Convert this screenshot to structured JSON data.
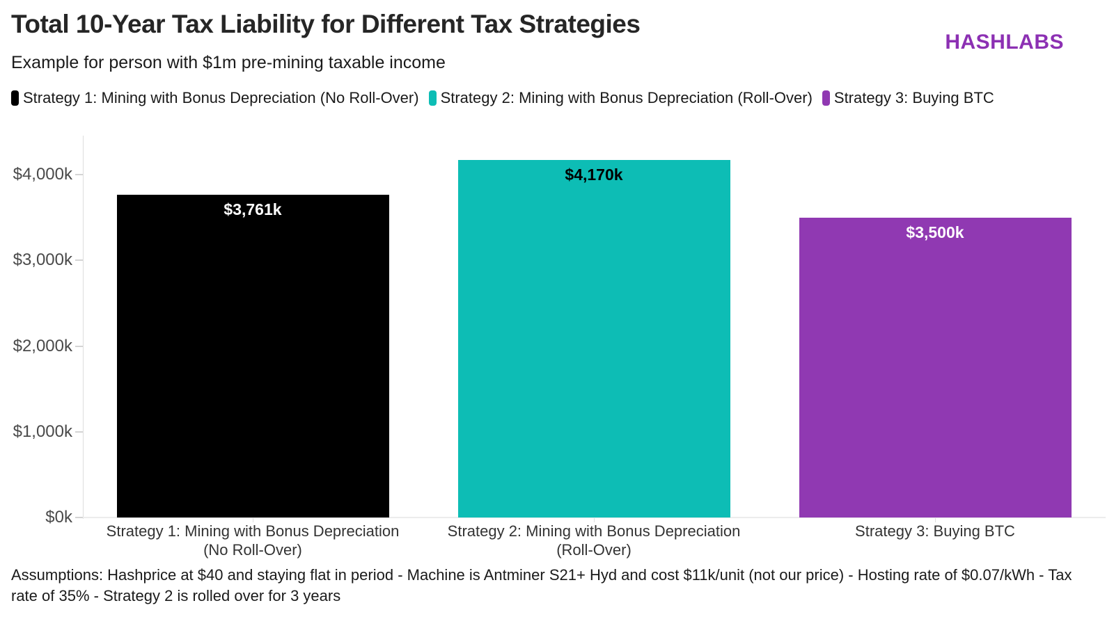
{
  "header": {
    "title": "Total 10-Year Tax Liability for Different Tax Strategies",
    "subtitle": "Example for person with $1m pre-mining taxable income",
    "logo_text": "HASHLABS",
    "logo_color": "#8c30b3"
  },
  "legend": {
    "items": [
      {
        "label": "Strategy 1: Mining with Bonus Depreciation (No Roll-Over)",
        "color": "#000000"
      },
      {
        "label": "Strategy 2: Mining with Bonus Depreciation (Roll-Over)",
        "color": "#0dbdb5"
      },
      {
        "label": "Strategy 3: Buying BTC",
        "color": "#9039b2"
      }
    ]
  },
  "chart_data": {
    "type": "bar",
    "title": "Total 10-Year Tax Liability for Different Tax Strategies",
    "subtitle": "Example for person with $1m pre-mining taxable income",
    "categories": [
      "Strategy 1: Mining with Bonus Depreciation\n(No Roll-Over)",
      "Strategy 2: Mining with Bonus Depreciation\n(Roll-Over)",
      "Strategy 3: Buying BTC"
    ],
    "series": [
      {
        "name": "Total 10-Year Tax Liability ($k)",
        "values": [
          3761,
          4170,
          3500
        ],
        "value_labels": [
          "$3,761k",
          "$4,170k",
          "$3,500k"
        ],
        "bar_colors": [
          "#000000",
          "#0dbdb5",
          "#9039b2"
        ],
        "value_label_colors": [
          "#ffffff",
          "#000000",
          "#ffffff"
        ]
      }
    ],
    "xlabel": "",
    "ylabel": "",
    "y_ticks": [
      {
        "value": 0,
        "label": "$0k"
      },
      {
        "value": 1000,
        "label": "$1,000k"
      },
      {
        "value": 2000,
        "label": "$2,000k"
      },
      {
        "value": 3000,
        "label": "$3,000k"
      },
      {
        "value": 4000,
        "label": "$4,000k"
      }
    ],
    "ylim": [
      0,
      4440
    ],
    "grid": false,
    "legend_position": "top"
  },
  "footer": {
    "text": "Assumptions: Hashprice at $40 and staying flat in period - Machine is Antminer S21+ Hyd and cost $11k/unit (not our price) - Hosting rate of $0.07/kWh - Tax rate of 35% - Strategy 2 is rolled over for 3 years"
  }
}
